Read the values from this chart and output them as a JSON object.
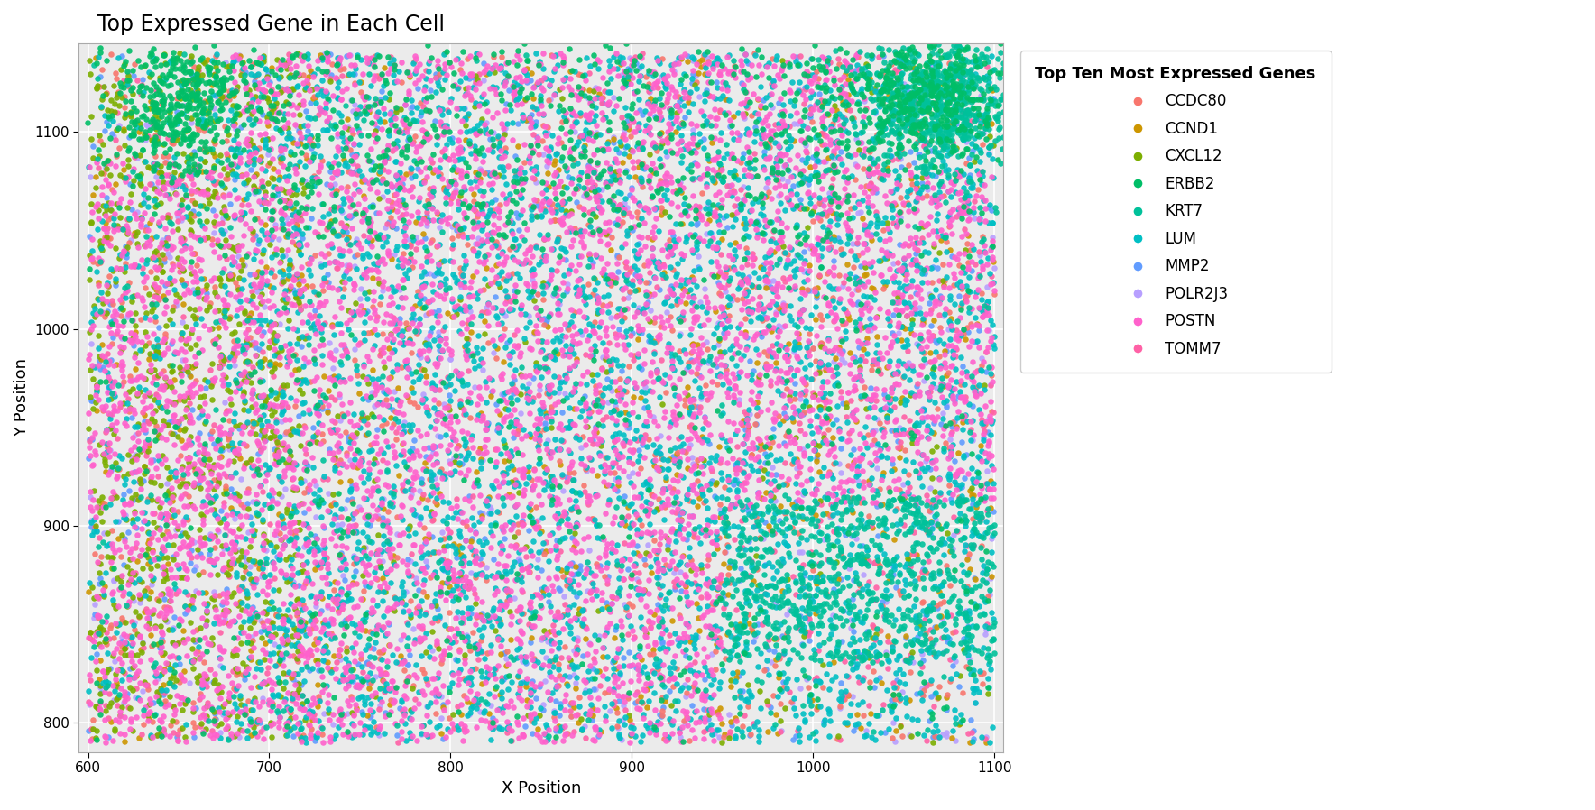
{
  "title": "Top Expressed Gene in Each Cell",
  "xlabel": "X Position",
  "ylabel": "Y Position",
  "legend_title": "Top Ten Most Expressed Genes",
  "xlim": [
    595,
    1105
  ],
  "ylim": [
    785,
    1145
  ],
  "xticks": [
    600,
    700,
    800,
    900,
    1000,
    1100
  ],
  "yticks": [
    800,
    900,
    1000,
    1100
  ],
  "background_color": "#EBEBEB",
  "grid_color": "#FFFFFF",
  "genes": [
    "CCDC80",
    "CCND1",
    "CXCL12",
    "ERBB2",
    "KRT7",
    "LUM",
    "MMP2",
    "POLR2J3",
    "POSTN",
    "TOMM7"
  ],
  "colors": {
    "CCDC80": "#F8766D",
    "CCND1": "#CD9600",
    "CXCL12": "#7CAE00",
    "ERBB2": "#00BE67",
    "KRT7": "#00C19A",
    "LUM": "#00BFC4",
    "MMP2": "#619CFF",
    "POLR2J3": "#B79FFF",
    "POSTN": "#FF61CC",
    "TOMM7": "#FF61A6"
  },
  "point_size": 22,
  "alpha": 0.9,
  "n_points": 18000,
  "seed": 42,
  "title_fontsize": 17,
  "axis_label_fontsize": 13,
  "tick_fontsize": 11,
  "legend_fontsize": 12,
  "legend_title_fontsize": 13
}
